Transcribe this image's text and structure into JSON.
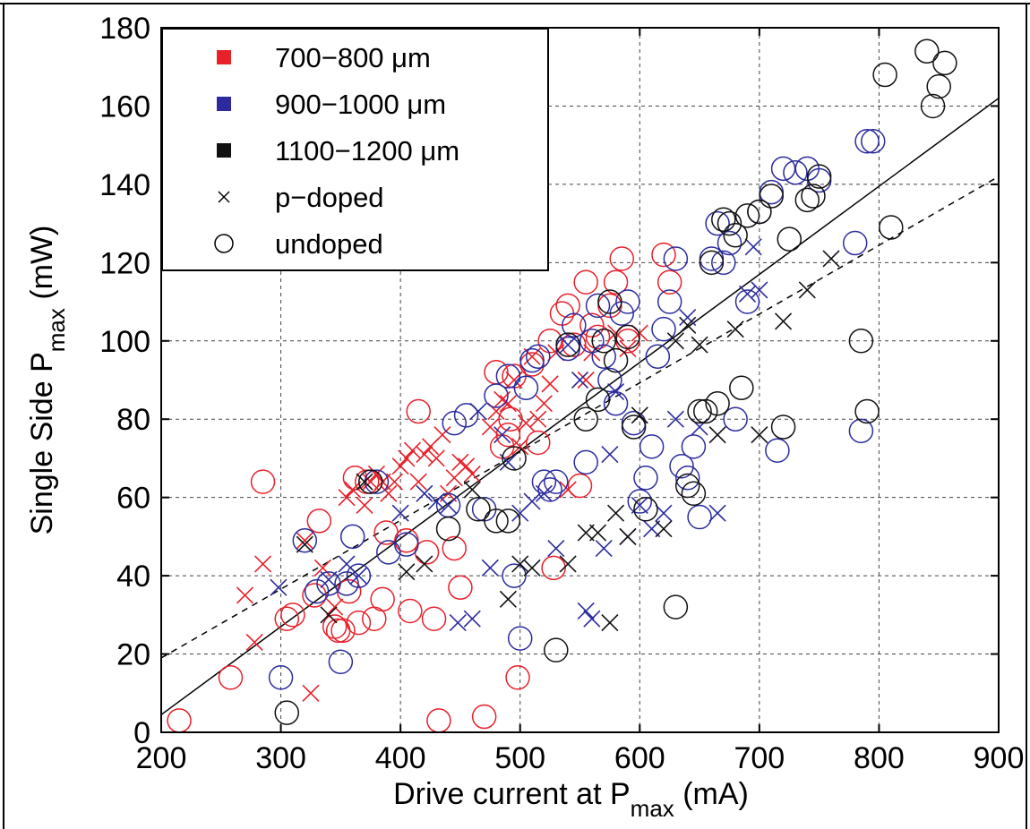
{
  "chart_data": {
    "type": "scatter",
    "title": "",
    "xlabel": {
      "main": "Drive current at P",
      "sub": "max",
      "suffix": " (mA)"
    },
    "ylabel": {
      "main": "Single Side P",
      "sub": "max",
      "suffix": " (mW)"
    },
    "xlim": [
      200,
      900
    ],
    "ylim": [
      0,
      180
    ],
    "xticks": [
      "200",
      "300",
      "400",
      "500",
      "600",
      "700",
      "800",
      "900"
    ],
    "yticks": [
      "0",
      "20",
      "40",
      "60",
      "80",
      "100",
      "120",
      "140",
      "160",
      "180"
    ],
    "grid": true,
    "legend_position": "top-left",
    "legend": [
      {
        "label": "700−800 μm",
        "marker": "square",
        "color": "#e8202a"
      },
      {
        "label": "900−1000 μm",
        "marker": "square",
        "color": "#2b2b9e"
      },
      {
        "label": "1100−1200 μm",
        "marker": "square",
        "color": "#111111"
      },
      {
        "label": "p−doped",
        "marker": "x",
        "color": "#000000"
      },
      {
        "label": "undoped",
        "marker": "circle",
        "color": "#000000"
      }
    ],
    "fit_lines": [
      {
        "style": "solid",
        "x": [
          200,
          900
        ],
        "y": [
          4.5,
          162
        ]
      },
      {
        "style": "dashed",
        "x": [
          200,
          900
        ],
        "y": [
          19,
          142
        ]
      }
    ],
    "series": [
      {
        "name": "700−800 μm, undoped",
        "marker": "circle",
        "color": "#e8202a",
        "x": [
          215,
          258,
          285,
          305,
          310,
          328,
          332,
          345,
          348,
          352,
          357,
          362,
          365,
          372,
          378,
          385,
          388,
          405,
          408,
          415,
          422,
          428,
          432,
          445,
          450,
          470,
          480,
          485,
          490,
          492,
          495,
          498,
          510,
          515,
          525,
          528,
          535,
          540,
          545,
          550,
          555,
          560,
          565,
          575,
          580,
          585,
          590,
          620,
          625
        ],
        "y": [
          3,
          14,
          64,
          29,
          30,
          35,
          54,
          27,
          26,
          26,
          36,
          65,
          28,
          64,
          29,
          34,
          51,
          49,
          31,
          82,
          46,
          29,
          3,
          47,
          37,
          4,
          92,
          73,
          76,
          80,
          91,
          14,
          94,
          74,
          100,
          42,
          107,
          109,
          99,
          63,
          115,
          104,
          101,
          109,
          115,
          121,
          100,
          122,
          115
        ]
      },
      {
        "name": "700−800 μm, p-doped",
        "marker": "x",
        "color": "#e8202a",
        "x": [
          270,
          278,
          285,
          320,
          325,
          335,
          345,
          355,
          360,
          370,
          375,
          380,
          385,
          390,
          395,
          400,
          405,
          410,
          415,
          420,
          425,
          430,
          435,
          440,
          445,
          450,
          455,
          460,
          475,
          480,
          485,
          490,
          495,
          500,
          505,
          510,
          515,
          520,
          525,
          530,
          540,
          555,
          560,
          580,
          590,
          600
        ],
        "y": [
          35,
          23,
          43,
          49,
          10,
          42,
          32,
          60,
          62,
          58,
          64,
          66,
          64,
          61,
          64,
          68,
          70,
          72,
          64,
          71,
          73,
          70,
          76,
          61,
          65,
          69,
          68,
          66,
          78,
          82,
          85,
          84,
          90,
          73,
          79,
          96,
          80,
          84,
          89,
          97,
          62,
          90,
          97,
          102,
          98,
          102
        ]
      },
      {
        "name": "900−1000 μm, undoped",
        "marker": "circle",
        "color": "#2b2b9e",
        "x": [
          300,
          320,
          330,
          340,
          350,
          355,
          360,
          365,
          380,
          390,
          405,
          440,
          445,
          455,
          470,
          480,
          490,
          495,
          500,
          505,
          510,
          515,
          520,
          525,
          530,
          540,
          545,
          555,
          560,
          565,
          570,
          575,
          580,
          585,
          590,
          595,
          600,
          605,
          610,
          615,
          620,
          625,
          630,
          635,
          640,
          645,
          650,
          660,
          665,
          670,
          675,
          680,
          690,
          700,
          710,
          715,
          720,
          730,
          740,
          750,
          780,
          785,
          790,
          795
        ],
        "y": [
          14,
          49,
          36,
          38,
          18,
          38,
          50,
          40,
          64,
          46,
          48,
          58,
          79,
          81,
          57,
          86,
          91,
          40,
          24,
          88,
          95,
          96,
          64,
          62,
          64,
          98,
          104,
          69,
          100,
          109,
          96,
          90,
          84,
          107,
          110,
          79,
          59,
          65,
          73,
          96,
          103,
          110,
          121,
          68,
          65,
          73,
          55,
          121,
          130,
          120,
          125,
          80,
          110,
          133,
          138,
          72,
          144,
          143,
          144,
          141,
          125,
          77,
          151,
          151
        ]
      },
      {
        "name": "900−1000 μm, p-doped",
        "marker": "x",
        "color": "#2b2b9e",
        "x": [
          298,
          340,
          355,
          365,
          400,
          420,
          430,
          440,
          448,
          460,
          465,
          475,
          485,
          490,
          500,
          510,
          520,
          530,
          540,
          550,
          555,
          560,
          570,
          575,
          580,
          590,
          600,
          610,
          620,
          630,
          640,
          650,
          665,
          690,
          695,
          700
        ],
        "y": [
          37,
          39,
          43,
          40,
          56,
          61,
          59,
          58,
          28,
          29,
          82,
          42,
          76,
          69,
          56,
          59,
          61,
          47,
          99,
          90,
          31,
          29,
          47,
          71,
          87,
          50,
          58,
          52,
          56,
          80,
          106,
          78,
          56,
          112,
          124,
          113
        ]
      },
      {
        "name": "1100−1200 μm, undoped",
        "marker": "circle",
        "color": "#111111",
        "x": [
          305,
          375,
          440,
          465,
          480,
          490,
          495,
          530,
          540,
          555,
          565,
          570,
          575,
          580,
          590,
          595,
          605,
          630,
          640,
          645,
          650,
          655,
          660,
          665,
          670,
          675,
          680,
          685,
          690,
          700,
          710,
          720,
          725,
          740,
          745,
          750,
          785,
          790,
          805,
          810,
          840,
          845,
          850,
          855
        ],
        "y": [
          5,
          64,
          52,
          57,
          54,
          54,
          70,
          21,
          99,
          80,
          85,
          100,
          110,
          95,
          101,
          78,
          57,
          32,
          63,
          61,
          82,
          82,
          120,
          84,
          131,
          130,
          127,
          88,
          132,
          133,
          137,
          78,
          126,
          136,
          137,
          142,
          100,
          82,
          168,
          129,
          174,
          160,
          165,
          171
        ]
      },
      {
        "name": "1100−1200 μm, p-doped",
        "marker": "x",
        "color": "#111111",
        "x": [
          320,
          340,
          370,
          405,
          420,
          460,
          490,
          500,
          510,
          540,
          555,
          565,
          575,
          580,
          590,
          600,
          620,
          630,
          640,
          650,
          665,
          680,
          700,
          720,
          740,
          760
        ],
        "y": [
          48,
          30,
          64,
          41,
          43,
          62,
          34,
          43,
          42,
          43,
          51,
          51,
          28,
          56,
          50,
          81,
          52,
          100,
          104,
          99,
          76,
          103,
          76,
          105,
          113,
          121
        ]
      }
    ]
  }
}
